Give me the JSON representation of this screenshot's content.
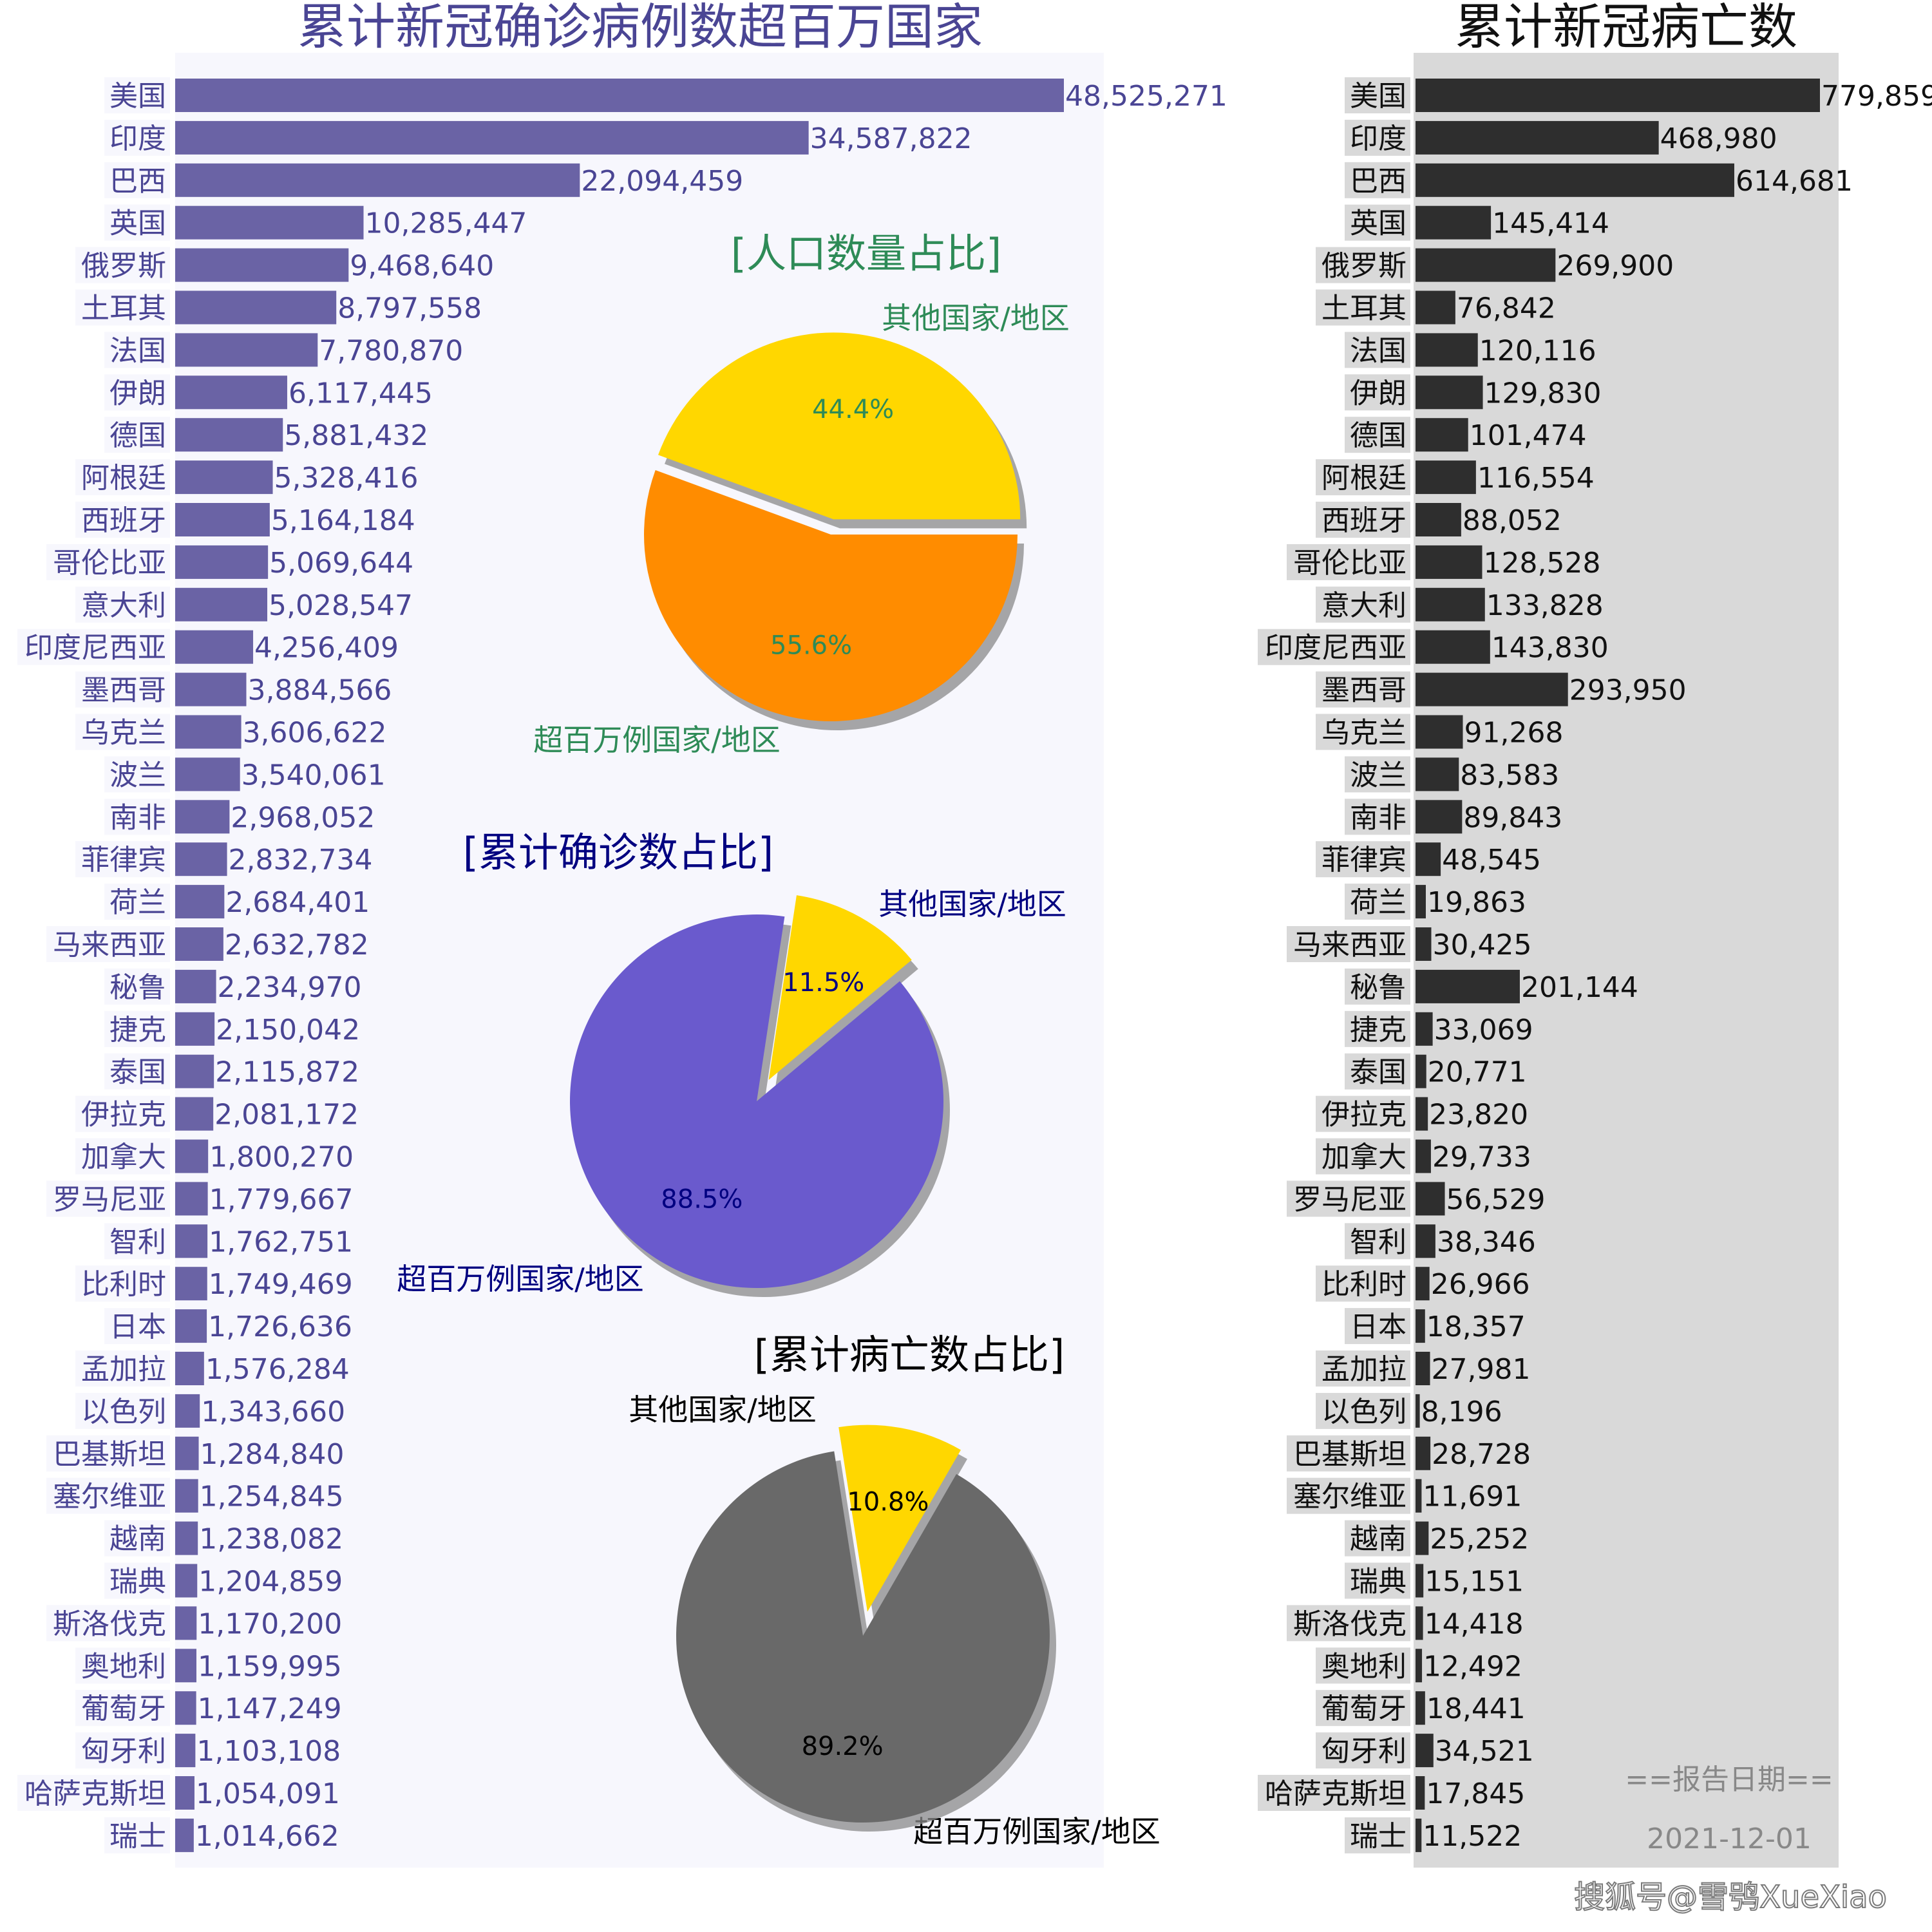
{
  "chart_data": [
    {
      "type": "bar",
      "orientation": "horizontal",
      "title": "累计新冠确诊病例数超百万国家",
      "categories": [
        "美国",
        "印度",
        "巴西",
        "英国",
        "俄罗斯",
        "土耳其",
        "法国",
        "伊朗",
        "德国",
        "阿根廷",
        "西班牙",
        "哥伦比亚",
        "意大利",
        "印度尼西亚",
        "墨西哥",
        "乌克兰",
        "波兰",
        "南非",
        "菲律宾",
        "荷兰",
        "马来西亚",
        "秘鲁",
        "捷克",
        "泰国",
        "伊拉克",
        "加拿大",
        "罗马尼亚",
        "智利",
        "比利时",
        "日本",
        "孟加拉",
        "以色列",
        "巴基斯坦",
        "塞尔维亚",
        "越南",
        "瑞典",
        "斯洛伐克",
        "奥地利",
        "葡萄牙",
        "匈牙利",
        "哈萨克斯坦",
        "瑞士"
      ],
      "values": [
        48525271,
        34587822,
        22094459,
        10285447,
        9468640,
        8797558,
        7780870,
        6117445,
        5881432,
        5328416,
        5164184,
        5069644,
        5028547,
        4256409,
        3884566,
        3606622,
        3540061,
        2968052,
        2832734,
        2684401,
        2632782,
        2234970,
        2150042,
        2115872,
        2081172,
        1800270,
        1779667,
        1762751,
        1749469,
        1726636,
        1576284,
        1343660,
        1284840,
        1254845,
        1238082,
        1204859,
        1170200,
        1159995,
        1147249,
        1103108,
        1054091,
        1014662
      ],
      "value_labels": [
        "48,525,271",
        "34,587,822",
        "22,094,459",
        "10,285,447",
        "9,468,640",
        "8,797,558",
        "7,780,870",
        "6,117,445",
        "5,881,432",
        "5,328,416",
        "5,164,184",
        "5,069,644",
        "5,028,547",
        "4,256,409",
        "3,884,566",
        "3,606,622",
        "3,540,061",
        "2,968,052",
        "2,832,734",
        "2,684,401",
        "2,632,782",
        "2,234,970",
        "2,150,042",
        "2,115,872",
        "2,081,172",
        "1,800,270",
        "1,779,667",
        "1,762,751",
        "1,749,469",
        "1,726,636",
        "1,576,284",
        "1,343,660",
        "1,284,840",
        "1,254,845",
        "1,238,082",
        "1,204,859",
        "1,170,200",
        "1,159,995",
        "1,147,249",
        "1,103,108",
        "1,054,091",
        "1,014,662"
      ],
      "bar_color": "#6a63a5",
      "background_color": "#f7f7fd"
    },
    {
      "type": "bar",
      "orientation": "horizontal",
      "title": "累计新冠病亡数",
      "categories": [
        "美国",
        "印度",
        "巴西",
        "英国",
        "俄罗斯",
        "土耳其",
        "法国",
        "伊朗",
        "德国",
        "阿根廷",
        "西班牙",
        "哥伦比亚",
        "意大利",
        "印度尼西亚",
        "墨西哥",
        "乌克兰",
        "波兰",
        "南非",
        "菲律宾",
        "荷兰",
        "马来西亚",
        "秘鲁",
        "捷克",
        "泰国",
        "伊拉克",
        "加拿大",
        "罗马尼亚",
        "智利",
        "比利时",
        "日本",
        "孟加拉",
        "以色列",
        "巴基斯坦",
        "塞尔维亚",
        "越南",
        "瑞典",
        "斯洛伐克",
        "奥地利",
        "葡萄牙",
        "匈牙利",
        "哈萨克斯坦",
        "瑞士"
      ],
      "values": [
        779859,
        468980,
        614681,
        145414,
        269900,
        76842,
        120116,
        129830,
        101474,
        116554,
        88052,
        128528,
        133828,
        143830,
        293950,
        91268,
        83583,
        89843,
        48545,
        19863,
        30425,
        201144,
        33069,
        20771,
        23820,
        29733,
        56529,
        38346,
        26966,
        18357,
        27981,
        8196,
        28728,
        11691,
        25252,
        15151,
        14418,
        12492,
        18441,
        34521,
        17845,
        11522
      ],
      "value_labels": [
        "779,859",
        "468,980",
        "614,681",
        "145,414",
        "269,900",
        "76,842",
        "120,116",
        "129,830",
        "101,474",
        "116,554",
        "88,052",
        "128,528",
        "133,828",
        "143,830",
        "293,950",
        "91,268",
        "83,583",
        "89,843",
        "48,545",
        "19,863",
        "30,425",
        "201,144",
        "33,069",
        "20,771",
        "23,820",
        "29,733",
        "56,529",
        "38,346",
        "26,966",
        "18,357",
        "27,981",
        "8,196",
        "28,728",
        "11,691",
        "25,252",
        "15,151",
        "14,418",
        "12,492",
        "18,441",
        "34,521",
        "17,845",
        "11,522"
      ],
      "bar_color": "#2e2e2e",
      "background_color": "#d9d9d9"
    },
    {
      "type": "pie",
      "title": "[人口数量占比]",
      "labels": [
        "其他国家/地区",
        "超百万例国家/地区"
      ],
      "values": [
        44.4,
        55.6
      ],
      "pct_labels": [
        "44.4%",
        "55.6%"
      ],
      "colors": [
        "#ffd700",
        "#ff8c00"
      ],
      "text_color": "#2e8b57",
      "exploded": "其他国家/地区",
      "shadow": true
    },
    {
      "type": "pie",
      "title": "[累计确诊数占比]",
      "labels": [
        "其他国家/地区",
        "超百万例国家/地区"
      ],
      "values": [
        11.5,
        88.5
      ],
      "pct_labels": [
        "11.5%",
        "88.5%"
      ],
      "colors": [
        "#ffd700",
        "#6a5acd"
      ],
      "text_color": "#000080",
      "exploded": "其他国家/地区",
      "shadow": true
    },
    {
      "type": "pie",
      "title": "[累计病亡数占比]",
      "labels": [
        "其他国家/地区",
        "超百万例国家/地区"
      ],
      "values": [
        10.8,
        89.2
      ],
      "pct_labels": [
        "10.8%",
        "89.2%"
      ],
      "colors": [
        "#ffd700",
        "#696969"
      ],
      "text_color": "#000000",
      "exploded": "其他国家/地区",
      "shadow": true
    }
  ],
  "footer": {
    "report_label": "==报告日期==",
    "report_date": "2021-12-01",
    "watermark": "搜狐号@雪鸮XueXiao"
  }
}
